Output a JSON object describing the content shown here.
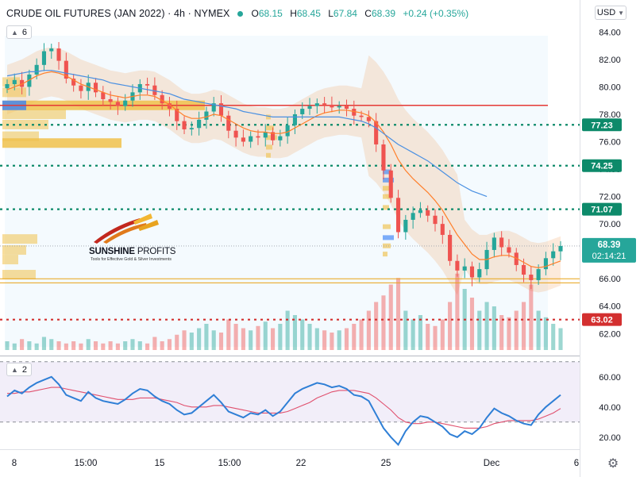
{
  "header": {
    "title": "CRUDE OIL FUTURES (JAN 2022) · 4h · NYMEX",
    "ohlc": [
      {
        "label": "O",
        "value": "68.15"
      },
      {
        "label": "H",
        "value": "68.45"
      },
      {
        "label": "L",
        "value": "67.84"
      },
      {
        "label": "C",
        "value": "68.39"
      },
      {
        "label": "",
        "value": "+0.24 (+0.35%)"
      }
    ]
  },
  "price_indicator_badge": {
    "count": "6"
  },
  "rsi_indicator_badge": {
    "count": "2"
  },
  "currency": "USD",
  "icons": {
    "collapse": "chevron-up-icon",
    "currency": "chevron-down-icon",
    "settings": "gear-icon"
  },
  "colors": {
    "up": "#26a69a",
    "down": "#ef5350",
    "sma_fast": "#ff7f2a",
    "sma_slow": "#4a90e2",
    "support_green": "#0d8a6a",
    "support_red": "#d32f2f",
    "rsi": "#2f7fd6",
    "rsi_ma": "#e0506e",
    "volume_profile": "#f0c14b"
  },
  "logo": {
    "brand_bold": "SUNSHINE",
    "brand_light": " PROFITS",
    "tagline": "Tools for Effective Gold & Silver Investments"
  },
  "chart_data": [
    {
      "type": "candlestick",
      "ylim": [
        60.8,
        84.6
      ],
      "y_ticks": [
        "84.00",
        "82.00",
        "80.00",
        "78.00",
        "76.00",
        "74.00",
        "72.00",
        "70.00",
        "66.00",
        "64.00",
        "62.00"
      ],
      "x_ticks": [
        "8",
        "15:00",
        "15",
        "15:00",
        "22",
        "25",
        "Dec",
        "6"
      ],
      "last_price": {
        "value": "68.39",
        "countdown": "02:14:21"
      },
      "horizontal_levels": [
        {
          "label": "77.23",
          "value": 77.23,
          "color": "green"
        },
        {
          "label": "74.25",
          "value": 74.25,
          "color": "green"
        },
        {
          "label": "71.07",
          "value": 71.07,
          "color": "green"
        },
        {
          "label": "63.02",
          "value": 63.02,
          "color": "red"
        }
      ],
      "closes": [
        80.2,
        80.5,
        80.0,
        80.9,
        81.6,
        82.6,
        82.8,
        81.9,
        80.6,
        80.1,
        79.7,
        80.3,
        79.6,
        79.1,
        78.9,
        78.6,
        79.0,
        79.6,
        80.2,
        80.1,
        79.4,
        78.8,
        78.4,
        77.5,
        76.9,
        77.0,
        77.6,
        78.2,
        78.8,
        77.9,
        76.8,
        76.3,
        76.0,
        76.4,
        76.3,
        76.7,
        76.1,
        76.4,
        77.2,
        78.0,
        78.4,
        78.6,
        78.8,
        78.7,
        78.5,
        78.6,
        78.4,
        77.9,
        77.8,
        77.5,
        75.8,
        73.9,
        71.9,
        69.4,
        70.3,
        70.8,
        71.0,
        70.6,
        70.0,
        69.2,
        67.3,
        66.6,
        66.9,
        66.1,
        66.7,
        68.1,
        69.0,
        68.3,
        67.9,
        67.0,
        66.3,
        65.9,
        66.7,
        67.5,
        68.0,
        68.39
      ],
      "sma_fast_values": [
        79.8,
        80.0,
        80.2,
        80.5,
        80.8,
        81.0,
        81.1,
        81.0,
        80.8,
        80.5,
        80.2,
        80.0,
        79.8,
        79.6,
        79.4,
        79.3,
        79.2,
        79.3,
        79.4,
        79.4,
        79.3,
        79.0,
        78.7,
        78.3,
        77.9,
        77.7,
        77.7,
        77.8,
        78.0,
        77.9,
        77.6,
        77.3,
        77.0,
        76.8,
        76.7,
        76.7,
        76.6,
        76.6,
        76.7,
        77.0,
        77.3,
        77.6,
        77.9,
        78.1,
        78.2,
        78.3,
        78.3,
        78.2,
        78.1,
        77.9,
        77.4,
        76.7,
        75.8,
        74.7,
        73.9,
        73.3,
        72.8,
        72.3,
        71.7,
        71.0,
        70.1,
        69.2,
        68.5,
        67.8,
        67.4,
        67.4,
        67.6,
        67.7,
        67.7,
        67.5,
        67.2,
        66.9,
        66.8,
        66.9,
        67.1,
        67.3
      ],
      "sma_slow_values": [
        80.8,
        80.9,
        81.0,
        81.1,
        81.1,
        81.2,
        81.2,
        81.1,
        81.0,
        80.9,
        80.8,
        80.7,
        80.6,
        80.5,
        80.3,
        80.2,
        80.1,
        80.0,
        79.9,
        79.8,
        79.7,
        79.6,
        79.5,
        79.3,
        79.1,
        79.0,
        78.9,
        78.8,
        78.7,
        78.6,
        78.5,
        78.4,
        78.2,
        78.1,
        78.0,
        77.9,
        77.8,
        77.8,
        77.8,
        77.8,
        77.8,
        77.8,
        77.8,
        77.8,
        77.8,
        77.8,
        77.7,
        77.6,
        77.5,
        77.3,
        77.0,
        76.6,
        76.2,
        75.8,
        75.5,
        75.2,
        74.9,
        74.6,
        74.2,
        73.8,
        73.4,
        73.0,
        72.7,
        72.4,
        72.2,
        72.0
      ],
      "volume_values": [
        4,
        3,
        5,
        4,
        3,
        6,
        5,
        4,
        3,
        4,
        3,
        5,
        4,
        3,
        4,
        3,
        4,
        5,
        4,
        3,
        6,
        4,
        5,
        7,
        9,
        8,
        10,
        12,
        9,
        8,
        14,
        12,
        10,
        9,
        11,
        13,
        10,
        12,
        18,
        16,
        14,
        12,
        10,
        9,
        8,
        9,
        10,
        12,
        14,
        18,
        22,
        25,
        30,
        33,
        18,
        14,
        16,
        12,
        11,
        14,
        22,
        35,
        28,
        24,
        18,
        22,
        20,
        16,
        15,
        18,
        22,
        30,
        18,
        15,
        12,
        10
      ]
    },
    {
      "type": "line",
      "indicator": "RSI",
      "ylim": [
        12,
        72
      ],
      "y_ticks": [
        "60.00",
        "40.00",
        "20.00"
      ],
      "upper_band": 70,
      "lower_band": 30,
      "rsi_values": [
        47,
        51,
        49,
        53,
        56,
        58,
        60,
        55,
        48,
        46,
        44,
        50,
        46,
        44,
        43,
        42,
        45,
        49,
        52,
        51,
        47,
        44,
        42,
        38,
        35,
        36,
        40,
        44,
        48,
        43,
        37,
        35,
        33,
        36,
        35,
        38,
        34,
        37,
        43,
        49,
        52,
        54,
        56,
        55,
        53,
        54,
        52,
        48,
        47,
        44,
        35,
        26,
        20,
        15,
        24,
        30,
        34,
        33,
        30,
        27,
        22,
        20,
        24,
        22,
        26,
        33,
        39,
        36,
        34,
        31,
        29,
        28,
        35,
        40,
        44,
        48
      ],
      "rsi_ma_values": [
        49,
        49,
        50,
        50,
        51,
        52,
        53,
        53,
        52,
        51,
        50,
        49,
        48,
        47,
        46,
        45,
        45,
        45,
        46,
        46,
        46,
        45,
        44,
        43,
        41,
        40,
        40,
        40,
        41,
        41,
        40,
        39,
        38,
        37,
        36,
        36,
        36,
        36,
        37,
        39,
        41,
        43,
        46,
        48,
        50,
        51,
        51,
        51,
        50,
        49,
        46,
        42,
        38,
        33,
        30,
        29,
        29,
        30,
        30,
        29,
        28,
        27,
        26,
        26,
        26,
        27,
        29,
        30,
        31,
        31,
        31,
        31,
        32,
        34,
        36,
        39
      ]
    }
  ]
}
